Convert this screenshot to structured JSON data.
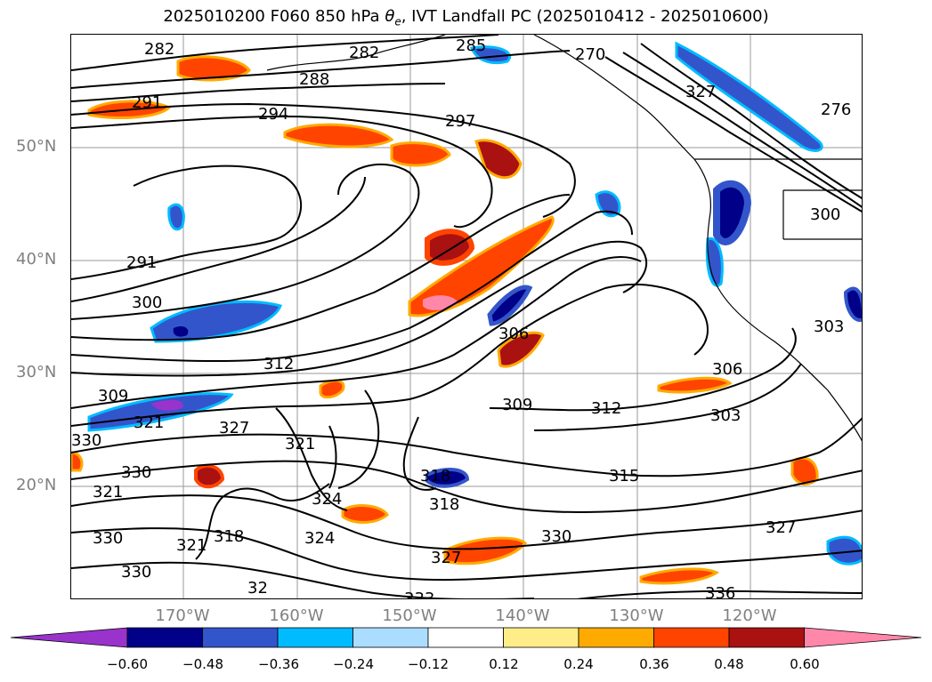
{
  "title": "2025010200 F060 850 hPa θe, IVT Landfall PC (2025010412 - 2025010600)",
  "title_parts": {
    "prefix": "2025010200 F060 850 hPa ",
    "theta": "θ",
    "subscript": "e",
    "suffix": ", IVT Landfall PC (2025010412 - 2025010600)"
  },
  "latitude_labels": [
    "50°N",
    "40°N",
    "30°N",
    "20°N"
  ],
  "longitude_labels": [
    "170°W",
    "160°W",
    "150°W",
    "140°W",
    "130°W",
    "120°W"
  ],
  "contour_labels": [
    "282",
    "282",
    "285",
    "288",
    "291",
    "294",
    "297",
    "291",
    "300",
    "312",
    "309",
    "321",
    "327",
    "321",
    "330",
    "321",
    "330",
    "321",
    "318",
    "324",
    "324",
    "327",
    "318",
    "318",
    "306",
    "309",
    "312",
    "303",
    "315",
    "306",
    "330",
    "333",
    "336",
    "330",
    "327",
    "303",
    "300",
    "276",
    "270",
    "330",
    "327",
    "32"
  ],
  "colorbar": {
    "tick_labels": [
      "−0.60",
      "−0.48",
      "−0.36",
      "−0.24",
      "−0.12",
      "0.12",
      "0.24",
      "0.36",
      "0.48",
      "0.60"
    ],
    "colors": [
      "#9933cc",
      "#000088",
      "#3355cc",
      "#00bbff",
      "#aaddff",
      "#ffffff",
      "#ffee88",
      "#ffaa00",
      "#ff4400",
      "#aa1111",
      "#ff88aa"
    ]
  },
  "palette": {
    "contour": "#000000",
    "grid": "#999999",
    "axis_label": "#808080"
  }
}
